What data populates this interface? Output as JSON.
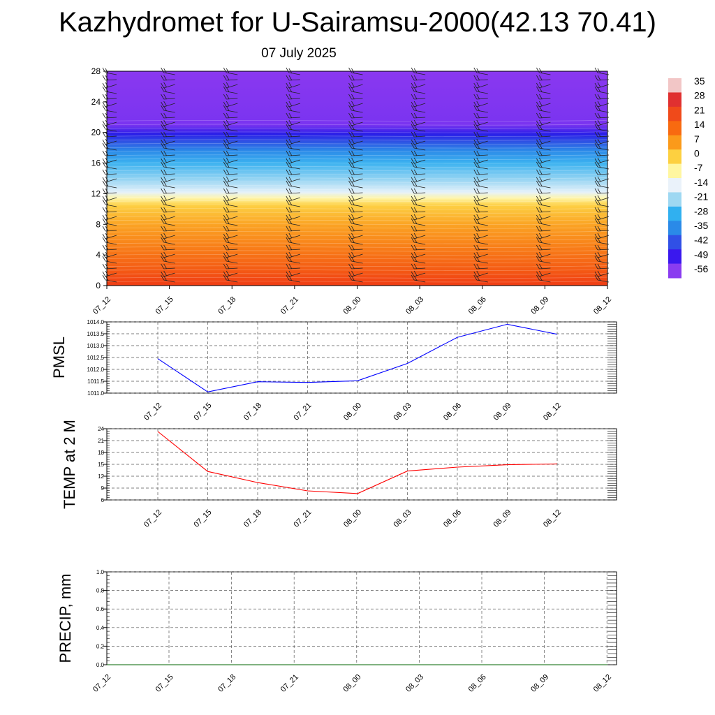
{
  "header": {
    "title": "Kazhydromet for U-Sairamsu-2000(42.13 70.41)",
    "date": "07 July 2025"
  },
  "chart_data": [
    {
      "type": "heatmap",
      "x_tick_labels": [
        "07_12",
        "07_15",
        "07_18",
        "07_21",
        "08_00",
        "08_03",
        "08_06",
        "08_09",
        "08_12"
      ],
      "y_ticks": [
        0,
        4,
        8,
        12,
        16,
        20,
        24,
        28
      ],
      "ylim": [
        0,
        28
      ],
      "colorbar_labels": [
        "35",
        "28",
        "21",
        "14",
        "7",
        "0",
        "-7",
        "-14",
        "-21",
        "-28",
        "-35",
        "-42",
        "-49",
        "-56"
      ],
      "colorbar_colors": [
        "#f2c6c6",
        "#e03030",
        "#f04a1a",
        "#f86a10",
        "#fb9a1a",
        "#fdd040",
        "#fff6a0",
        "#eaf2fa",
        "#9ed8f2",
        "#30b0f0",
        "#2a8ae8",
        "#3050e6",
        "#3a18ee",
        "#8a3cf0"
      ],
      "note_barbs": "wind barbs at each time column",
      "levels": [
        {
          "y": 0,
          "c": "#f03c14"
        },
        {
          "y": 2,
          "c": "#f45a14"
        },
        {
          "y": 5,
          "c": "#f87e18"
        },
        {
          "y": 8,
          "c": "#fba424"
        },
        {
          "y": 10.5,
          "c": "#fdd044"
        },
        {
          "y": 11.4,
          "c": "#fff5a8"
        },
        {
          "y": 12.2,
          "c": "#e4f1fa"
        },
        {
          "y": 14,
          "c": "#90d2f2"
        },
        {
          "y": 16,
          "c": "#3cb2f0"
        },
        {
          "y": 17.6,
          "c": "#2c8ae8"
        },
        {
          "y": 18.8,
          "c": "#2e52e4"
        },
        {
          "y": 19.8,
          "c": "#2a1ee8"
        },
        {
          "y": 21,
          "c": "#7a34f0"
        },
        {
          "y": 28,
          "c": "#8a38f0"
        }
      ]
    },
    {
      "type": "line",
      "ylabel": "PMSL",
      "x": [
        "07_12",
        "07_15",
        "07_18",
        "07_21",
        "08_00",
        "08_03",
        "08_06",
        "08_09",
        "08_12"
      ],
      "y_ticks": [
        "1011.0",
        "1011.5",
        "1012.0",
        "1012.5",
        "1013.0",
        "1013.5",
        "1014.0"
      ],
      "ylim": [
        1011.0,
        1014.0
      ],
      "series": [
        {
          "color": "#0000ff",
          "values": [
            1012.45,
            1011.05,
            1011.48,
            1011.45,
            1011.52,
            1012.25,
            1013.35,
            1013.9,
            1013.48
          ]
        }
      ]
    },
    {
      "type": "line",
      "ylabel": "TEMP at 2 M",
      "x": [
        "07_12",
        "07_15",
        "07_18",
        "07_21",
        "08_00",
        "08_03",
        "08_06",
        "08_09",
        "08_12"
      ],
      "y_ticks": [
        "6",
        "9",
        "12",
        "15",
        "18",
        "21",
        "24"
      ],
      "ylim": [
        6,
        24
      ],
      "series": [
        {
          "color": "#ff0000",
          "values": [
            23.3,
            13.2,
            10.4,
            8.3,
            7.6,
            13.3,
            14.3,
            14.9,
            15.1
          ]
        }
      ]
    },
    {
      "type": "line",
      "ylabel": "PRECIP, mm",
      "x_tick_labels": [
        "07_12",
        "07_15",
        "07_18",
        "07_21",
        "08_00",
        "08_03",
        "08_06",
        "08_09",
        "08_12"
      ],
      "y_ticks": [
        "0.0",
        "0.2",
        "0.4",
        "0.6",
        "0.8",
        "1.0"
      ],
      "ylim": [
        0,
        1
      ],
      "series": [
        {
          "color": "#006400",
          "values": [
            0,
            0,
            0,
            0,
            0,
            0,
            0,
            0,
            0
          ]
        }
      ]
    }
  ]
}
